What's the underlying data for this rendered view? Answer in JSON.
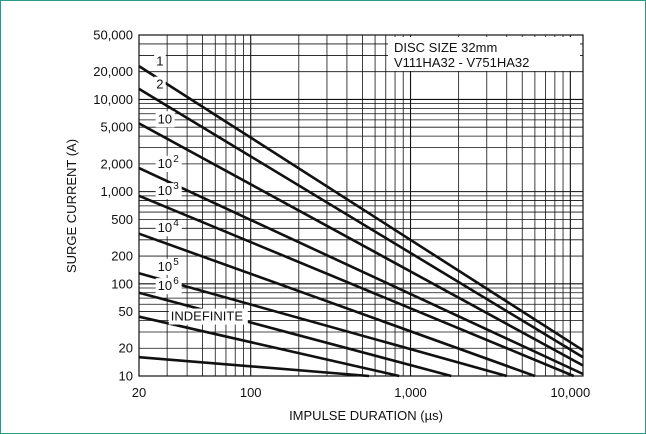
{
  "chart_data": {
    "type": "line",
    "xscale": "log",
    "yscale": "log",
    "xlim": [
      20,
      12000
    ],
    "ylim": [
      10,
      50000
    ],
    "xlabel": "IMPULSE DURATION (µs)",
    "ylabel": "SURGE CURRENT (A)",
    "annotation": [
      "DISC SIZE 32mm",
      "V111HA32 - V751HA32"
    ],
    "grid": true,
    "x_ticks": [
      {
        "value": 20,
        "label": "20"
      },
      {
        "value": 100,
        "label": "100"
      },
      {
        "value": 1000,
        "label": "1,000"
      },
      {
        "value": 10000,
        "label": "10,000"
      }
    ],
    "y_ticks": [
      {
        "value": 50000,
        "label": "50,000"
      },
      {
        "value": 20000,
        "label": "20,000"
      },
      {
        "value": 10000,
        "label": "10,000"
      },
      {
        "value": 5000,
        "label": "5,000"
      },
      {
        "value": 2000,
        "label": "2,000"
      },
      {
        "value": 1000,
        "label": "1,000"
      },
      {
        "value": 500,
        "label": "500"
      },
      {
        "value": 200,
        "label": "200"
      },
      {
        "value": 100,
        "label": "100"
      },
      {
        "value": 50,
        "label": "50"
      },
      {
        "value": 20,
        "label": "20"
      },
      {
        "value": 10,
        "label": "10"
      }
    ],
    "series": [
      {
        "name": "1",
        "label_base": "1",
        "label_exp": "",
        "points": [
          [
            20,
            23000
          ],
          [
            12000,
            19
          ]
        ]
      },
      {
        "name": "2",
        "label_base": "2",
        "label_exp": "",
        "points": [
          [
            20,
            13000
          ],
          [
            12000,
            16
          ]
        ]
      },
      {
        "name": "10",
        "label_base": "10",
        "label_exp": "",
        "points": [
          [
            20,
            5500
          ],
          [
            12000,
            13
          ]
        ]
      },
      {
        "name": "10^2",
        "label_base": "10",
        "label_exp": "2",
        "points": [
          [
            20,
            1800
          ],
          [
            12000,
            10.5
          ]
        ]
      },
      {
        "name": "10^3",
        "label_base": "10",
        "label_exp": "3",
        "points": [
          [
            20,
            900
          ],
          [
            10500,
            10
          ]
        ]
      },
      {
        "name": "10^4",
        "label_base": "10",
        "label_exp": "4",
        "points": [
          [
            20,
            350
          ],
          [
            6000,
            10
          ]
        ]
      },
      {
        "name": "10^5",
        "label_base": "10",
        "label_exp": "5",
        "points": [
          [
            20,
            130
          ],
          [
            4000,
            10
          ]
        ]
      },
      {
        "name": "10^6",
        "label_base": "10",
        "label_exp": "6",
        "points": [
          [
            20,
            80
          ],
          [
            1800,
            10
          ]
        ]
      },
      {
        "name": "INDEFINITE",
        "label_base": "",
        "label_exp": "",
        "points": [
          [
            20,
            44
          ],
          [
            850,
            10
          ]
        ]
      },
      {
        "name": "INDEFINITE_2",
        "label_base": "",
        "label_exp": "",
        "points": [
          [
            20,
            16
          ],
          [
            550,
            10
          ]
        ]
      }
    ],
    "curve_text": [
      "1",
      "2",
      "10",
      "10",
      "10",
      "10",
      "10",
      "10",
      "INDEFINITE"
    ],
    "curve_exp": [
      "",
      "",
      "",
      "2",
      "3",
      "4",
      "5",
      "6",
      ""
    ]
  }
}
